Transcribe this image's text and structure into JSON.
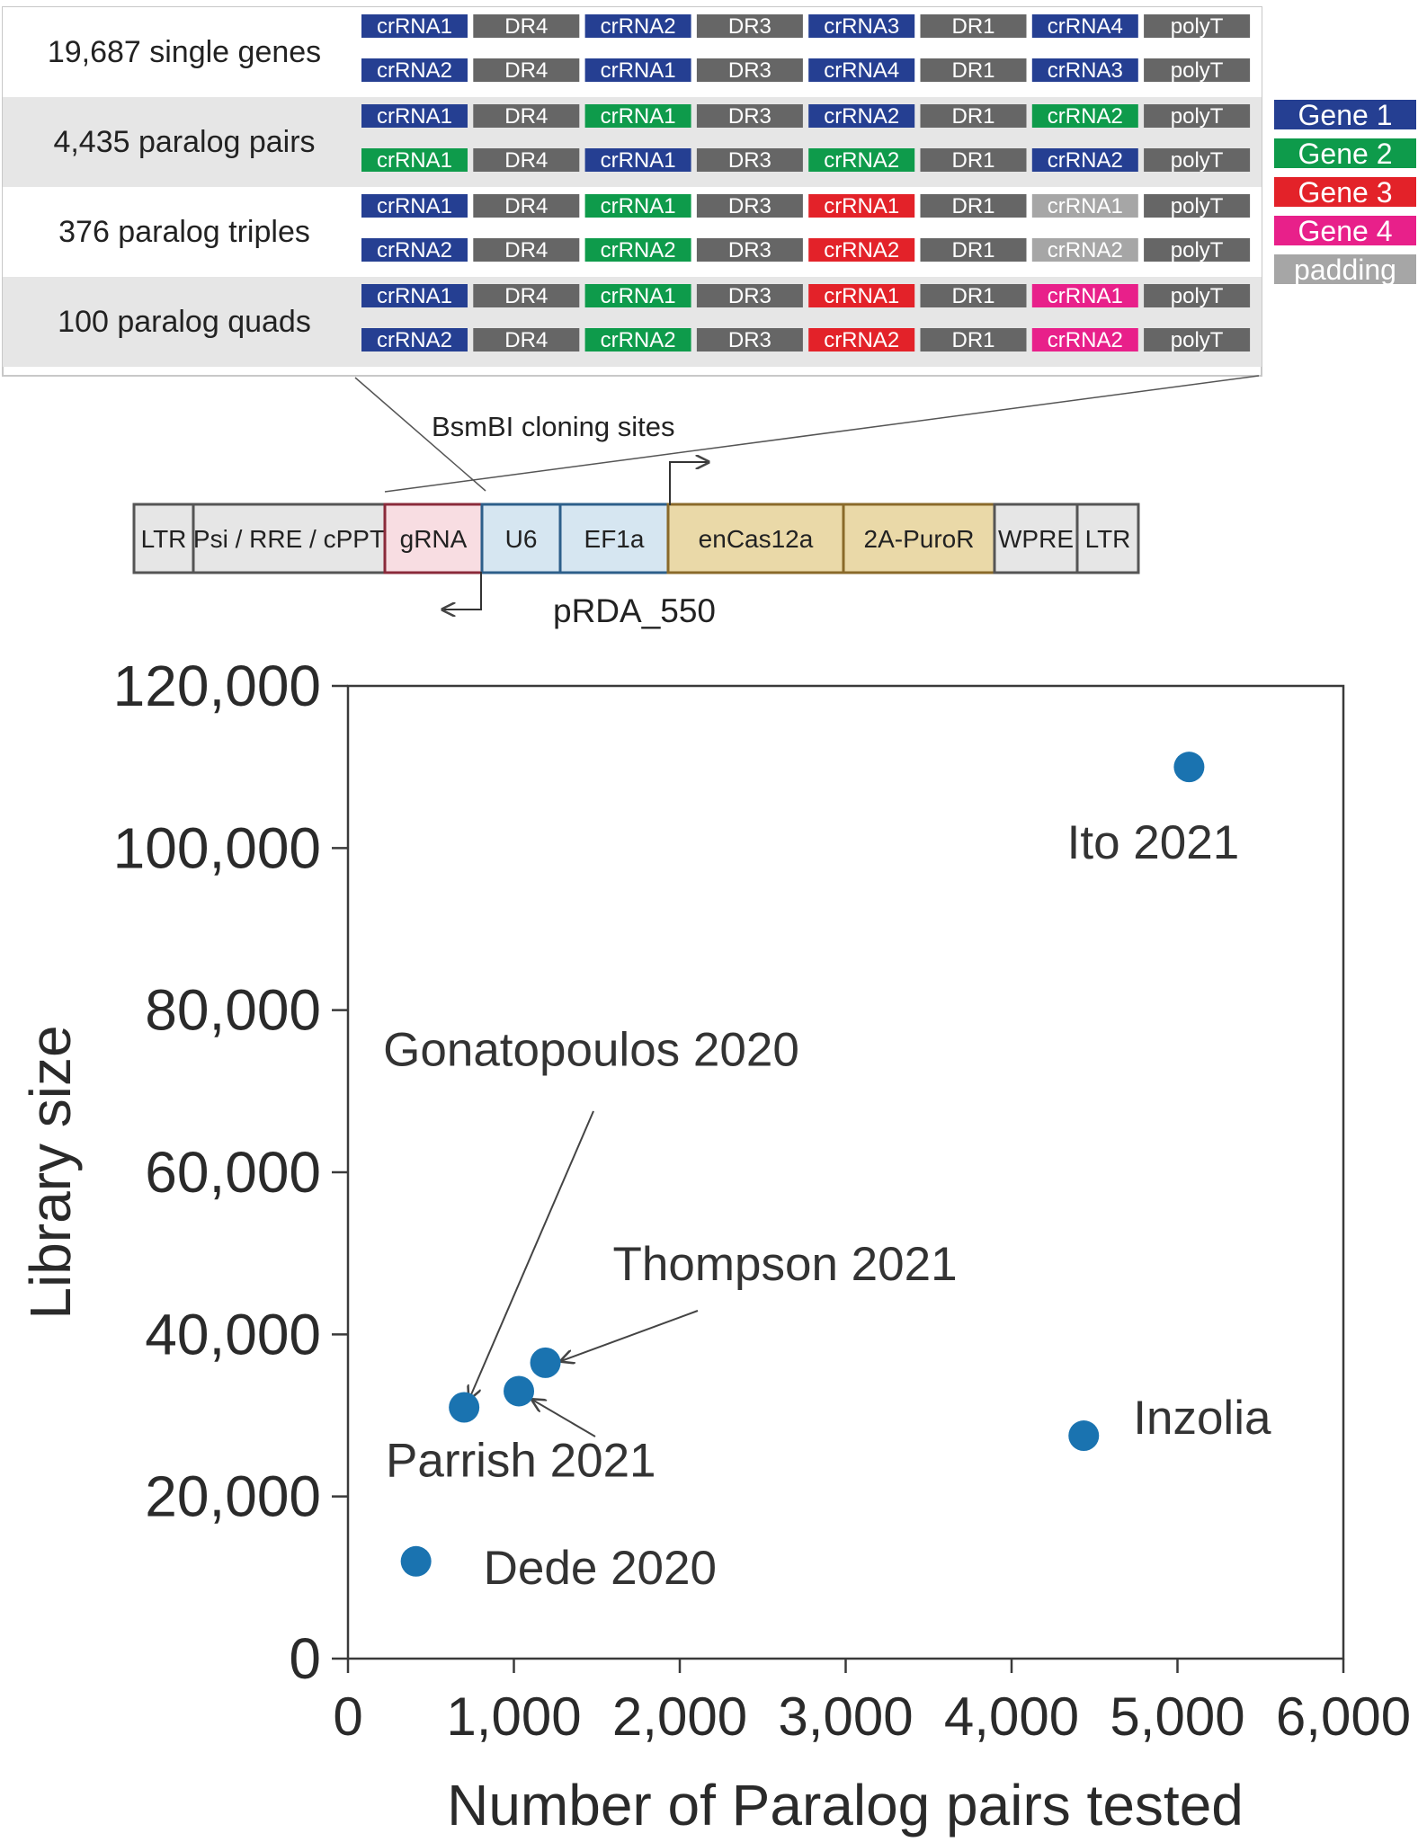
{
  "library_design": {
    "groups": [
      {
        "label": "19,687 single genes",
        "shade": "#ffffff",
        "rows": [
          [
            {
              "text": "crRNA1",
              "color": "gene1"
            },
            {
              "text": "DR4",
              "color": "dr"
            },
            {
              "text": "crRNA2",
              "color": "gene1"
            },
            {
              "text": "DR3",
              "color": "dr"
            },
            {
              "text": "crRNA3",
              "color": "gene1"
            },
            {
              "text": "DR1",
              "color": "dr"
            },
            {
              "text": "crRNA4",
              "color": "gene1"
            },
            {
              "text": "polyT",
              "color": "dr"
            }
          ],
          [
            {
              "text": "crRNA2",
              "color": "gene1"
            },
            {
              "text": "DR4",
              "color": "dr"
            },
            {
              "text": "crRNA1",
              "color": "gene1"
            },
            {
              "text": "DR3",
              "color": "dr"
            },
            {
              "text": "crRNA4",
              "color": "gene1"
            },
            {
              "text": "DR1",
              "color": "dr"
            },
            {
              "text": "crRNA3",
              "color": "gene1"
            },
            {
              "text": "polyT",
              "color": "dr"
            }
          ]
        ]
      },
      {
        "label": "4,435 paralog pairs",
        "shade": "#e6e6e6",
        "rows": [
          [
            {
              "text": "crRNA1",
              "color": "gene1"
            },
            {
              "text": "DR4",
              "color": "dr"
            },
            {
              "text": "crRNA1",
              "color": "gene2"
            },
            {
              "text": "DR3",
              "color": "dr"
            },
            {
              "text": "crRNA2",
              "color": "gene1"
            },
            {
              "text": "DR1",
              "color": "dr"
            },
            {
              "text": "crRNA2",
              "color": "gene2"
            },
            {
              "text": "polyT",
              "color": "dr"
            }
          ],
          [
            {
              "text": "crRNA1",
              "color": "gene2"
            },
            {
              "text": "DR4",
              "color": "dr"
            },
            {
              "text": "crRNA1",
              "color": "gene1"
            },
            {
              "text": "DR3",
              "color": "dr"
            },
            {
              "text": "crRNA2",
              "color": "gene2"
            },
            {
              "text": "DR1",
              "color": "dr"
            },
            {
              "text": "crRNA2",
              "color": "gene1"
            },
            {
              "text": "polyT",
              "color": "dr"
            }
          ]
        ]
      },
      {
        "label": "376 paralog triples",
        "shade": "#ffffff",
        "rows": [
          [
            {
              "text": "crRNA1",
              "color": "gene1"
            },
            {
              "text": "DR4",
              "color": "dr"
            },
            {
              "text": "crRNA1",
              "color": "gene2"
            },
            {
              "text": "DR3",
              "color": "dr"
            },
            {
              "text": "crRNA1",
              "color": "gene3"
            },
            {
              "text": "DR1",
              "color": "dr"
            },
            {
              "text": "crRNA1",
              "color": "padding"
            },
            {
              "text": "polyT",
              "color": "dr"
            }
          ],
          [
            {
              "text": "crRNA2",
              "color": "gene1"
            },
            {
              "text": "DR4",
              "color": "dr"
            },
            {
              "text": "crRNA2",
              "color": "gene2"
            },
            {
              "text": "DR3",
              "color": "dr"
            },
            {
              "text": "crRNA2",
              "color": "gene3"
            },
            {
              "text": "DR1",
              "color": "dr"
            },
            {
              "text": "crRNA2",
              "color": "padding"
            },
            {
              "text": "polyT",
              "color": "dr"
            }
          ]
        ]
      },
      {
        "label": "100 paralog quads",
        "shade": "#e6e6e6",
        "rows": [
          [
            {
              "text": "crRNA1",
              "color": "gene1"
            },
            {
              "text": "DR4",
              "color": "dr"
            },
            {
              "text": "crRNA1",
              "color": "gene2"
            },
            {
              "text": "DR3",
              "color": "dr"
            },
            {
              "text": "crRNA1",
              "color": "gene3"
            },
            {
              "text": "DR1",
              "color": "dr"
            },
            {
              "text": "crRNA1",
              "color": "gene4"
            },
            {
              "text": "polyT",
              "color": "dr"
            }
          ],
          [
            {
              "text": "crRNA2",
              "color": "gene1"
            },
            {
              "text": "DR4",
              "color": "dr"
            },
            {
              "text": "crRNA2",
              "color": "gene2"
            },
            {
              "text": "DR3",
              "color": "dr"
            },
            {
              "text": "crRNA2",
              "color": "gene3"
            },
            {
              "text": "DR1",
              "color": "dr"
            },
            {
              "text": "crRNA2",
              "color": "gene4"
            },
            {
              "text": "polyT",
              "color": "dr"
            }
          ]
        ]
      }
    ],
    "legend": [
      {
        "text": "Gene 1",
        "color": "gene1"
      },
      {
        "text": "Gene 2",
        "color": "gene2"
      },
      {
        "text": "Gene 3",
        "color": "gene3"
      },
      {
        "text": "Gene 4",
        "color": "gene4"
      },
      {
        "text": "padding",
        "color": "padding"
      }
    ],
    "colors": {
      "gene1": "#253f92",
      "gene2": "#0e9b4b",
      "gene3": "#e32229",
      "gene4": "#e8208a",
      "padding": "#a6a6a6",
      "dr": "#666666"
    }
  },
  "vector": {
    "cloning_label": "BsmBI cloning sites",
    "name": "pRDA_550",
    "elements": [
      {
        "text": "LTR",
        "fill": "#e6e6e6",
        "border": "#555555"
      },
      {
        "text": "Psi / RRE / cPPT",
        "fill": "#e6e6e6",
        "border": "#555555"
      },
      {
        "text": "gRNA",
        "fill": "#f8dde2",
        "border": "#8a2a3a"
      },
      {
        "text": "U6",
        "fill": "#d6e6f1",
        "border": "#2d5f8a"
      },
      {
        "text": "EF1a",
        "fill": "#d6e6f1",
        "border": "#2d5f8a"
      },
      {
        "text": "enCas12a",
        "fill": "#ead9a8",
        "border": "#8a6a2a"
      },
      {
        "text": "2A-PuroR",
        "fill": "#ead9a8",
        "border": "#8a6a2a"
      },
      {
        "text": "WPRE",
        "fill": "#e6e6e6",
        "border": "#555555"
      },
      {
        "text": "LTR",
        "fill": "#e6e6e6",
        "border": "#555555"
      }
    ]
  },
  "chart_data": {
    "type": "scatter",
    "title": "",
    "xlabel": "Number of Paralog pairs tested",
    "ylabel": "Library size",
    "xlim": [
      0,
      6000
    ],
    "ylim": [
      0,
      120000
    ],
    "xticks": [
      0,
      1000,
      2000,
      3000,
      4000,
      5000,
      6000
    ],
    "xtick_labels": [
      "0",
      "1,000",
      "2,000",
      "3,000",
      "4,000",
      "5,000",
      "6,000"
    ],
    "yticks": [
      0,
      20000,
      40000,
      60000,
      80000,
      100000,
      120000
    ],
    "ytick_labels": [
      "0",
      "20,000",
      "40,000",
      "60,000",
      "80,000",
      "100,000",
      "120,000"
    ],
    "point_color": "#1a73b0",
    "points": [
      {
        "label": "Ito 2021",
        "x": 5070,
        "y": 110000
      },
      {
        "label": "Inzolia",
        "x": 4435,
        "y": 27500
      },
      {
        "label": "Thompson 2021",
        "x": 1190,
        "y": 36500
      },
      {
        "label": "Parrish 2021",
        "x": 1030,
        "y": 33000
      },
      {
        "label": "Gonatopoulos 2020",
        "x": 700,
        "y": 31000
      },
      {
        "label": "Dede 2020",
        "x": 410,
        "y": 12000
      }
    ]
  }
}
